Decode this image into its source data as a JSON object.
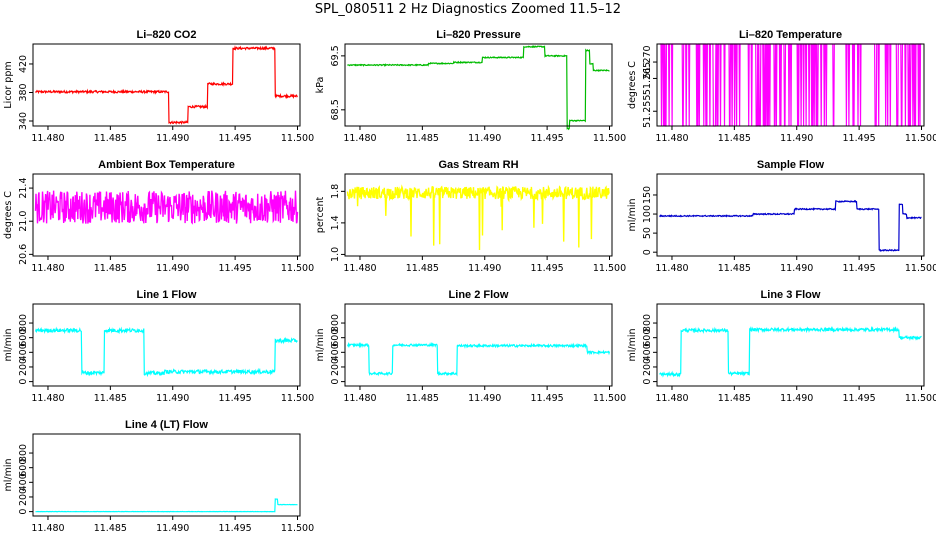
{
  "figure": {
    "title": "SPL_080511  2 Hz Diagnostics Zoomed 11.5–12"
  },
  "chart_data": [
    {
      "type": "line",
      "title": "Li–820 CO2",
      "ylabel": "Licor ppm",
      "color": "#ff0000",
      "xlim": [
        11.4788,
        11.5002
      ],
      "ylim": [
        333,
        448
      ],
      "xticks": [
        "11.480",
        "11.485",
        "11.490",
        "11.495",
        "11.500"
      ],
      "yticks": [
        "340",
        "380",
        "420"
      ],
      "segments": [
        [
          11.479,
          11.4897,
          381
        ],
        [
          11.4897,
          11.4912,
          338
        ],
        [
          11.4912,
          11.4928,
          360
        ],
        [
          11.4928,
          11.4948,
          392
        ],
        [
          11.4948,
          11.4982,
          442
        ],
        [
          11.4982,
          11.5,
          375
        ]
      ],
      "noise": 1.5
    },
    {
      "type": "line",
      "title": "Li–820 Pressure",
      "ylabel": "kPa",
      "color": "#00bb00",
      "xlim": [
        11.4788,
        11.5002
      ],
      "ylim": [
        68.2,
        69.72
      ],
      "xticks": [
        "11.480",
        "11.485",
        "11.490",
        "11.495",
        "11.500"
      ],
      "yticks": [
        "68.5",
        "69.5"
      ],
      "segments": [
        [
          11.479,
          11.4855,
          69.33
        ],
        [
          11.4855,
          11.4875,
          69.36
        ],
        [
          11.4875,
          11.4898,
          69.38
        ],
        [
          11.4898,
          11.4931,
          69.47
        ],
        [
          11.4931,
          11.4948,
          69.67
        ],
        [
          11.4948,
          11.4966,
          69.5
        ],
        [
          11.4966,
          11.4968,
          68.15
        ],
        [
          11.4968,
          11.4981,
          68.3
        ],
        [
          11.4981,
          11.4984,
          69.6
        ],
        [
          11.4984,
          11.4987,
          69.35
        ],
        [
          11.4987,
          11.5,
          69.23
        ]
      ],
      "noise": 0.01
    },
    {
      "type": "line",
      "title": "Li–820 Temperature",
      "ylabel": "degrees C",
      "color": "#ff00ff",
      "xlim": [
        11.4788,
        11.5002
      ],
      "ylim": [
        51.2505,
        51.2755
      ],
      "xticks": [
        "11.480",
        "11.485",
        "11.490",
        "11.495",
        "11.500"
      ],
      "yticks": [
        "51.255",
        "51.265",
        "51.270"
      ],
      "segments": [
        [
          11.479,
          11.5,
          51.2755
        ]
      ],
      "noise": 0,
      "mode": "binary",
      "low": 51.2505
    },
    {
      "type": "line",
      "title": "Ambient Box Temperature",
      "ylabel": "degrees C",
      "color": "#ff00ff",
      "xlim": [
        11.4788,
        11.5002
      ],
      "ylim": [
        20.58,
        21.57
      ],
      "xticks": [
        "11.480",
        "11.485",
        "11.490",
        "11.495",
        "11.500"
      ],
      "yticks": [
        "20.6",
        "21.0",
        "21.4"
      ],
      "segments": [
        [
          11.479,
          11.5,
          21.17
        ]
      ],
      "noise": 0.2,
      "mode": "dense"
    },
    {
      "type": "line",
      "title": "Gas Stream RH",
      "ylabel": "percent",
      "color": "#ffff00",
      "xlim": [
        11.4788,
        11.5002
      ],
      "ylim": [
        0.98,
        2.02
      ],
      "xticks": [
        "11.480",
        "11.485",
        "11.490",
        "11.495",
        "11.500"
      ],
      "yticks": [
        "1.0",
        "1.4",
        "1.8"
      ],
      "segments": [
        [
          11.479,
          11.5,
          1.78
        ]
      ],
      "noise": 0.08,
      "mode": "dense",
      "spikes": 0.42
    },
    {
      "type": "line",
      "title": "Sample Flow",
      "ylabel": "ml/min",
      "color": "#0000cc",
      "xlim": [
        11.4788,
        11.5002
      ],
      "ylim": [
        -10,
        205
      ],
      "xticks": [
        "11.480",
        "11.485",
        "11.490",
        "11.495",
        "11.500"
      ],
      "yticks": [
        "0",
        "50",
        "100",
        "150"
      ],
      "segments": [
        [
          11.479,
          11.4865,
          95
        ],
        [
          11.4865,
          11.4898,
          100
        ],
        [
          11.4898,
          11.4931,
          113
        ],
        [
          11.4931,
          11.4948,
          133
        ],
        [
          11.4948,
          11.4966,
          113
        ],
        [
          11.4966,
          11.4982,
          5
        ],
        [
          11.4982,
          11.4985,
          125
        ],
        [
          11.4985,
          11.4988,
          100
        ],
        [
          11.4988,
          11.5,
          90
        ]
      ],
      "noise": 1.5
    },
    {
      "type": "line",
      "title": "Line 1 Flow",
      "ylabel": "ml/min",
      "color": "#00ffff",
      "xlim": [
        11.4788,
        11.5002
      ],
      "ylim": [
        -60,
        1060
      ],
      "xticks": [
        "11.480",
        "11.485",
        "11.490",
        "11.495",
        "11.500"
      ],
      "yticks": [
        "0",
        "200",
        "400",
        "600",
        "800"
      ],
      "segments": [
        [
          11.479,
          11.4827,
          700
        ],
        [
          11.4827,
          11.4845,
          120
        ],
        [
          11.4845,
          11.4877,
          700
        ],
        [
          11.4877,
          11.4893,
          115
        ],
        [
          11.4893,
          11.4982,
          135
        ],
        [
          11.4982,
          11.5,
          560
        ]
      ],
      "noise": 25
    },
    {
      "type": "line",
      "title": "Line 2 Flow",
      "ylabel": "ml/min",
      "color": "#00ffff",
      "xlim": [
        11.4788,
        11.5002
      ],
      "ylim": [
        -60,
        1060
      ],
      "xticks": [
        "11.480",
        "11.485",
        "11.490",
        "11.495",
        "11.500"
      ],
      "yticks": [
        "0",
        "200",
        "400",
        "600",
        "800"
      ],
      "segments": [
        [
          11.479,
          11.4807,
          500
        ],
        [
          11.4807,
          11.4826,
          110
        ],
        [
          11.4826,
          11.4862,
          500
        ],
        [
          11.4862,
          11.4878,
          110
        ],
        [
          11.4878,
          11.4982,
          490
        ],
        [
          11.4982,
          11.5,
          400
        ]
      ],
      "noise": 15
    },
    {
      "type": "line",
      "title": "Line 3 Flow",
      "ylabel": "ml/min",
      "color": "#00ffff",
      "xlim": [
        11.4788,
        11.5002
      ],
      "ylim": [
        -60,
        1060
      ],
      "xticks": [
        "11.480",
        "11.485",
        "11.490",
        "11.495",
        "11.500"
      ],
      "yticks": [
        "0",
        "200",
        "400",
        "600",
        "800"
      ],
      "segments": [
        [
          11.479,
          11.4807,
          100
        ],
        [
          11.4807,
          11.4845,
          700
        ],
        [
          11.4845,
          11.4862,
          110
        ],
        [
          11.4862,
          11.4982,
          710
        ],
        [
          11.4982,
          11.5,
          600
        ]
      ],
      "noise": 20
    },
    {
      "type": "line",
      "title": "Line 4 (LT) Flow",
      "ylabel": "ml/min",
      "color": "#00ffff",
      "xlim": [
        11.4788,
        11.5002
      ],
      "ylim": [
        -60,
        1060
      ],
      "xticks": [
        "11.480",
        "11.485",
        "11.490",
        "11.495",
        "11.500"
      ],
      "yticks": [
        "0",
        "200",
        "400",
        "600",
        "800"
      ],
      "segments": [
        [
          11.479,
          11.4982,
          0
        ],
        [
          11.4982,
          11.4984,
          170
        ],
        [
          11.4984,
          11.5,
          95
        ]
      ],
      "noise": 2
    }
  ]
}
